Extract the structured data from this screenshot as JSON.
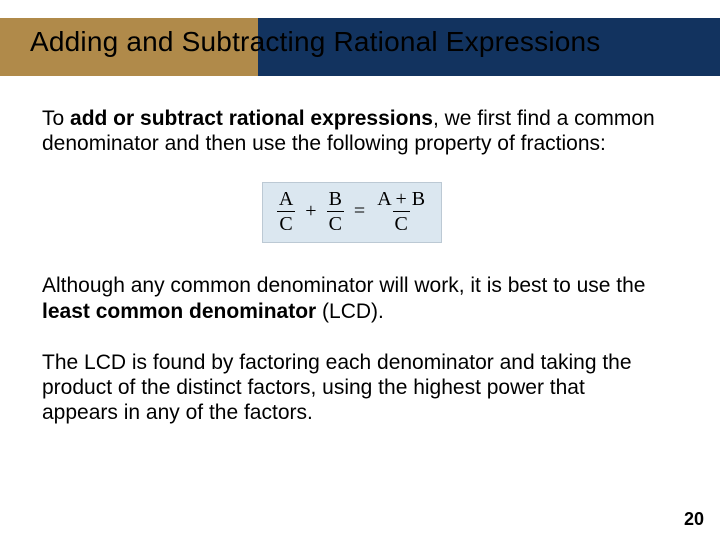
{
  "colors": {
    "band_left": "#b08a4a",
    "band_right": "#12335f",
    "formula_bg": "#dbe7f0",
    "formula_border": "#bcc9d4",
    "text": "#000000",
    "background": "#ffffff"
  },
  "title": "Adding and Subtracting Rational Expressions",
  "para1_a": "To ",
  "para1_bold": "add or subtract rational expressions",
  "para1_b": ", we first find a common denominator and then use the following property of fractions:",
  "formula": {
    "f1_num": "A",
    "f1_den": "C",
    "op1": "+",
    "f2_num": "B",
    "f2_den": "C",
    "eq": "=",
    "f3_num": "A + B",
    "f3_den": "C"
  },
  "para2_a": "Although any common denominator will work, it is best to use the ",
  "para2_bold": "least common denominator",
  "para2_b": " (LCD).",
  "para3": "The LCD is found by factoring each denominator and taking the product of the distinct factors, using the highest power that appears in any of the factors.",
  "page_number": "20"
}
